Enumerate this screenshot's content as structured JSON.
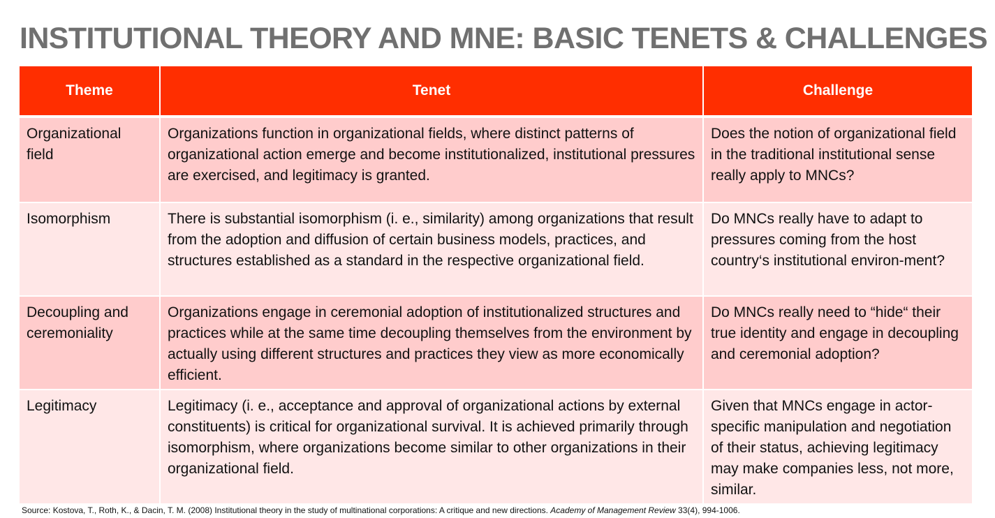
{
  "slide": {
    "title": "INSTITUTIONAL THEORY AND MNE: BASIC TENETS & CHALLENGES"
  },
  "table": {
    "headers": [
      "Theme",
      "Tenet",
      "Challenge"
    ],
    "rows": [
      {
        "theme": "Organizational field",
        "tenet": "Organizations function in organizational fields, where distinct patterns of organizational action emerge and become institutionalized, institutional pressures are exercised, and legitimacy is granted.",
        "challenge": "Does the notion of organizational field in the traditional institutional sense really apply to MNCs?"
      },
      {
        "theme": "Isomorphism",
        "tenet": "There is substantial isomorphism (i. e., similarity) among organizations that result from the adoption and diffusion of certain business models, practices, and structures established as a standard in the respective organizational field.",
        "challenge": "Do MNCs really have to adapt to pressures coming from the host country‘s institutional environ-ment?"
      },
      {
        "theme": "Decoupling and ceremoniality",
        "tenet": "Organizations engage in ceremonial adoption of institutionalized structures and practices while at the same time decoupling themselves from the environment by actually using different structures and practices they view as more economically efficient.",
        "challenge": "Do MNCs really need to “hide“ their true identity and engage in decoupling and ceremonial adoption?"
      },
      {
        "theme": "Legitimacy",
        "tenet": "Legitimacy (i. e., acceptance and approval of organizational actions by external constituents) is critical for organizational survival. It is achieved primarily through isomorphism, where organizations become similar to other organizations in their organizational field.",
        "challenge": "Given that MNCs engage in actor-specific manipulation and negotiation of their status, achieving legitimacy may make companies less, not more, similar."
      }
    ]
  },
  "source": {
    "prefix": "Source: Kostova, T., Roth, K., & Dacin, T. M. (2008) Institutional theory in the study of multinational corporations: A critique and new directions. ",
    "journal": "Academy of Management Review",
    "suffix": " 33(4), 994-1006."
  },
  "colors": {
    "header_bg": "#ff2e00",
    "row_odd_bg": "#ffcccc",
    "row_even_bg": "#ffe7e7",
    "title_text": "#707070"
  }
}
